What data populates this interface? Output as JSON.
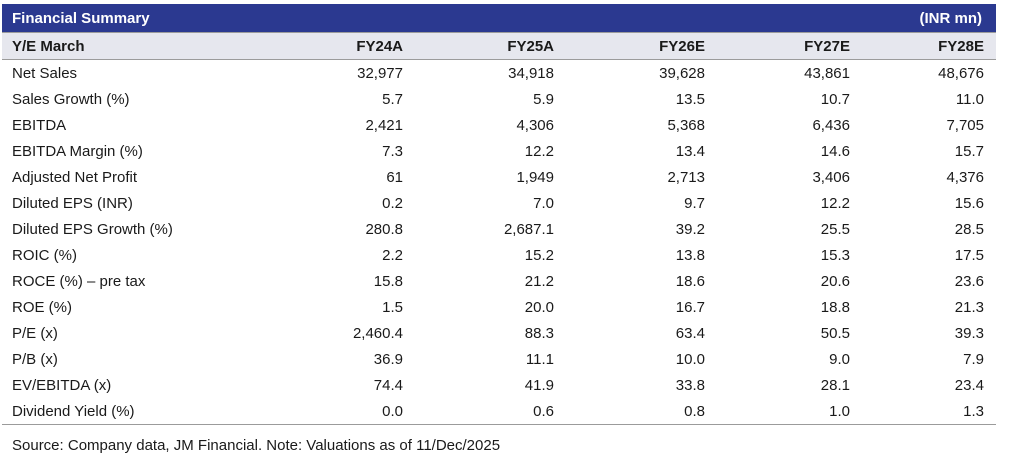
{
  "title": "Financial Summary",
  "unit": "(INR mn)",
  "columns": [
    "Y/E March",
    "FY24A",
    "FY25A",
    "FY26E",
    "FY27E",
    "FY28E"
  ],
  "rows": [
    [
      "Net Sales",
      "32,977",
      "34,918",
      "39,628",
      "43,861",
      "48,676"
    ],
    [
      "Sales Growth (%)",
      "5.7",
      "5.9",
      "13.5",
      "10.7",
      "11.0"
    ],
    [
      "EBITDA",
      "2,421",
      "4,306",
      "5,368",
      "6,436",
      "7,705"
    ],
    [
      "EBITDA Margin (%)",
      "7.3",
      "12.2",
      "13.4",
      "14.6",
      "15.7"
    ],
    [
      "Adjusted Net Profit",
      "61",
      "1,949",
      "2,713",
      "3,406",
      "4,376"
    ],
    [
      "Diluted EPS (INR)",
      "0.2",
      "7.0",
      "9.7",
      "12.2",
      "15.6"
    ],
    [
      "Diluted EPS Growth (%)",
      "280.8",
      "2,687.1",
      "39.2",
      "25.5",
      "28.5"
    ],
    [
      "ROIC (%)",
      "2.2",
      "15.2",
      "13.8",
      "15.3",
      "17.5"
    ],
    [
      "ROCE (%) – pre tax",
      "15.8",
      "21.2",
      "18.6",
      "20.6",
      "23.6"
    ],
    [
      "ROE (%)",
      "1.5",
      "20.0",
      "16.7",
      "18.8",
      "21.3"
    ],
    [
      "P/E (x)",
      "2,460.4",
      "88.3",
      "63.4",
      "50.5",
      "39.3"
    ],
    [
      "P/B (x)",
      "36.9",
      "11.1",
      "10.0",
      "9.0",
      "7.9"
    ],
    [
      "EV/EBITDA (x)",
      "74.4",
      "41.9",
      "33.8",
      "28.1",
      "23.4"
    ],
    [
      "Dividend Yield (%)",
      "0.0",
      "0.6",
      "0.8",
      "1.0",
      "1.3"
    ]
  ],
  "source": "Source: Company data, JM Financial. Note: Valuations as of 11/Dec/2025",
  "colors": {
    "header_bg": "#2b3990",
    "subheader_bg": "#e6e7ee"
  }
}
